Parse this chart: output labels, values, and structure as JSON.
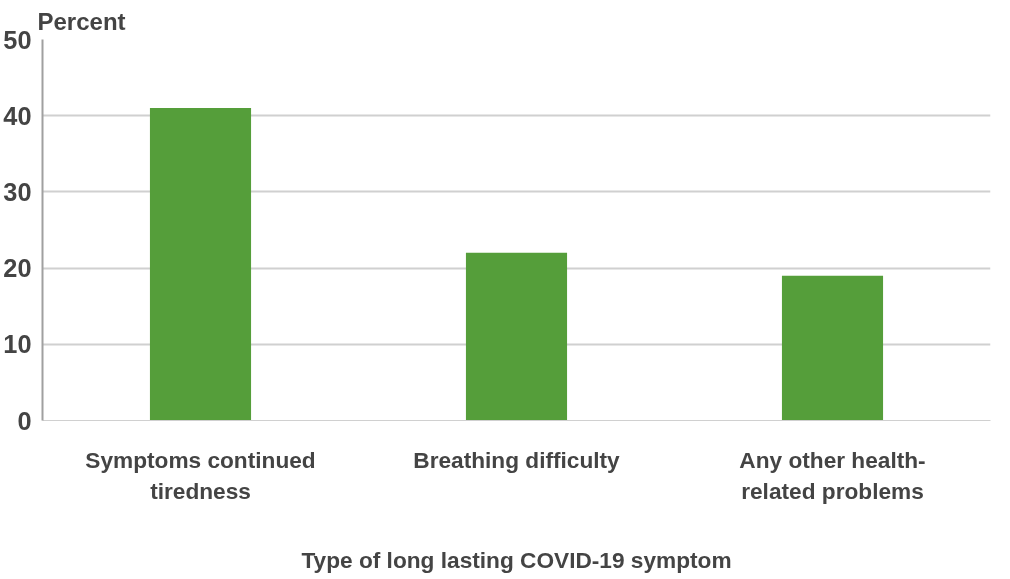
{
  "chart_data": {
    "type": "bar",
    "ylabel": "Percent",
    "xlabel": "Type of long lasting COVID-19 symptom",
    "categories": [
      "Symptoms continued tiredness",
      "Breathing difficulty",
      "Any other health-related problems"
    ],
    "values": [
      41,
      22,
      19
    ],
    "color": "#559e3a",
    "ylim": [
      0,
      50
    ],
    "yticks": [
      0,
      10,
      20,
      30,
      40,
      50
    ],
    "grid": "y"
  }
}
